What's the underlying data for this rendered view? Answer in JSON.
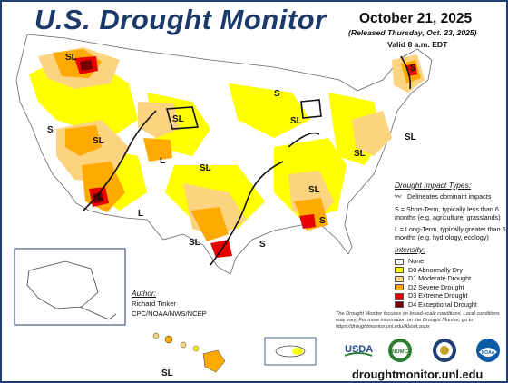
{
  "header": {
    "title": "U.S. Drought Monitor",
    "date": "October 21, 2025",
    "released": "(Released Thursday, Oct. 23, 2025)",
    "valid": "Valid 8 a.m. EDT"
  },
  "impact": {
    "title": "Drought Impact Types:",
    "delineates": "Delineates dominant impacts",
    "short_term": "S = Short-Term, typically less than 6 months (e.g. agriculture, grasslands)",
    "long_term": "L = Long-Term, typically greater than 6 months (e.g. hydrology, ecology)"
  },
  "intensity": {
    "title": "Intensity:",
    "levels": [
      {
        "label": "None",
        "color": "#ffffff"
      },
      {
        "label": "D0 Abnormally Dry",
        "color": "#ffff00"
      },
      {
        "label": "D1 Moderate Drought",
        "color": "#fcd37f"
      },
      {
        "label": "D2 Severe Drought",
        "color": "#ffaa00"
      },
      {
        "label": "D3 Extreme Drought",
        "color": "#e60000"
      },
      {
        "label": "D4 Exceptional Drought",
        "color": "#730000"
      }
    ]
  },
  "author": {
    "title": "Author:",
    "name": "Richard Tinker",
    "org": "CPC/NOAA/NWS/NCEP"
  },
  "note": "The Drought Monitor focuses on broad-scale conditions. Local conditions may vary. For more information on the Drought Monitor, go to https://droughtmonitor.unl.edu/About.aspx",
  "footer": {
    "url": "droughtmonitor.unl.edu",
    "logos": [
      {
        "name": "USDA",
        "text": "USDA"
      },
      {
        "name": "NDMC",
        "text": "NDMC"
      },
      {
        "name": "Dept. of Commerce",
        "text": ""
      },
      {
        "name": "NOAA",
        "text": "NOAA"
      }
    ]
  },
  "map_labels": {
    "sl": "SL",
    "s": "S",
    "l": "L"
  }
}
